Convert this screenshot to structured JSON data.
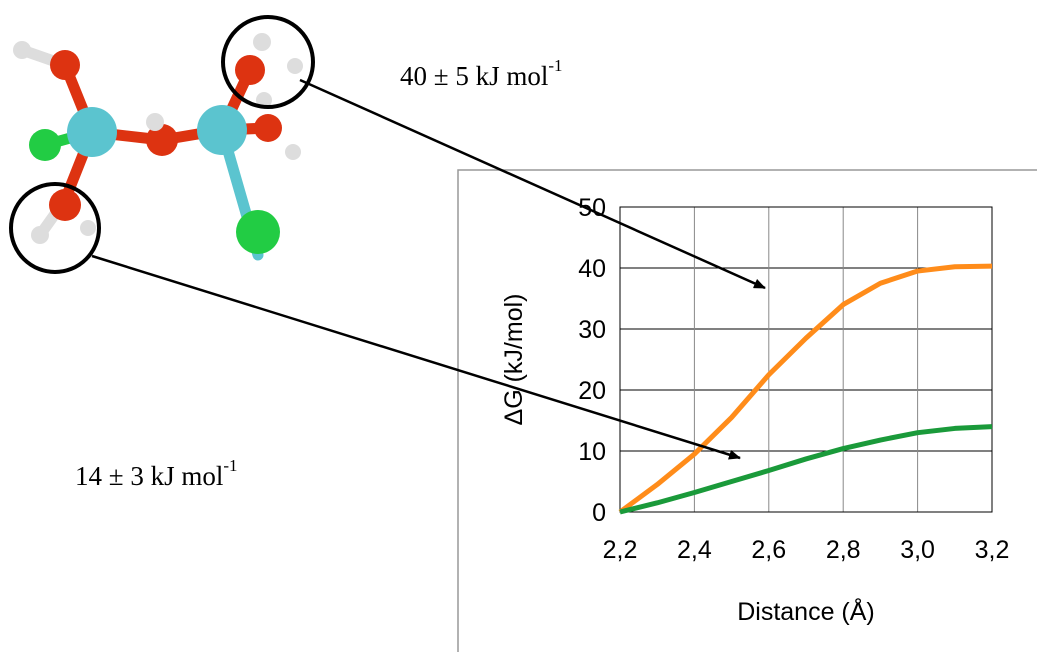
{
  "chart_data": {
    "type": "line",
    "x": [
      2.2,
      2.3,
      2.4,
      2.5,
      2.6,
      2.7,
      2.8,
      2.9,
      3.0,
      3.1,
      3.2
    ],
    "series": [
      {
        "color": "#ff8c1a",
        "values": [
          0,
          4.5,
          9.5,
          15.5,
          22.5,
          28.5,
          34,
          37.5,
          39.5,
          40.2,
          40.3
        ]
      },
      {
        "color": "#1a9a3a",
        "values": [
          0,
          1.5,
          3.2,
          5,
          6.8,
          8.7,
          10.4,
          11.8,
          13,
          13.7,
          14
        ]
      }
    ],
    "xlim": [
      2.2,
      3.2
    ],
    "xticks": [
      {
        "value": 2.2,
        "label": "2,2"
      },
      {
        "value": 2.4,
        "label": "2,4"
      },
      {
        "value": 2.6,
        "label": "2,6"
      },
      {
        "value": 2.8,
        "label": "2,8"
      },
      {
        "value": 3.0,
        "label": "3,0"
      },
      {
        "value": 3.2,
        "label": "3,2"
      }
    ],
    "ylim": [
      0,
      50
    ],
    "yticks": [
      0,
      10,
      20,
      30,
      40,
      50
    ],
    "xlabel": "Distance  (Å)",
    "ylabel": "ΔG (kJ/mol)",
    "grid": true,
    "annotations": [
      {
        "text": "40 ± 5 kJ mol",
        "sup": "-1"
      },
      {
        "text": "14 ± 3 kJ mol",
        "sup": "-1"
      }
    ]
  }
}
